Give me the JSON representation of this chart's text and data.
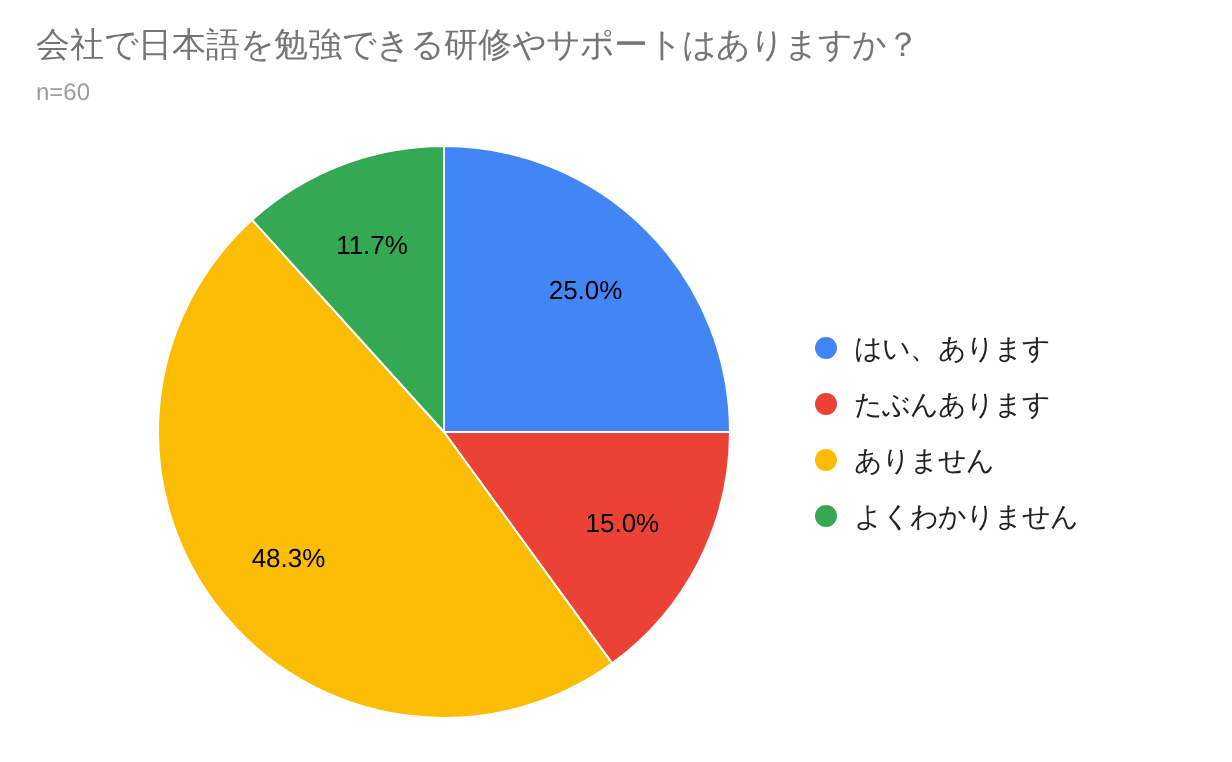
{
  "chart_data": {
    "type": "pie",
    "title": "会社で日本語を勉強できる研修やサポートはありますか？",
    "subtitle": "n=60",
    "categories": [
      "はい、あります",
      "たぶんあります",
      "ありません",
      "よくわかりません"
    ],
    "values": [
      25.0,
      15.0,
      48.3,
      11.7
    ],
    "value_labels": [
      "25.0%",
      "15.0%",
      "48.3%",
      "11.7%"
    ],
    "colors": [
      "#4285f4",
      "#ea4335",
      "#fbbc04",
      "#34a853"
    ],
    "legend": "right"
  }
}
